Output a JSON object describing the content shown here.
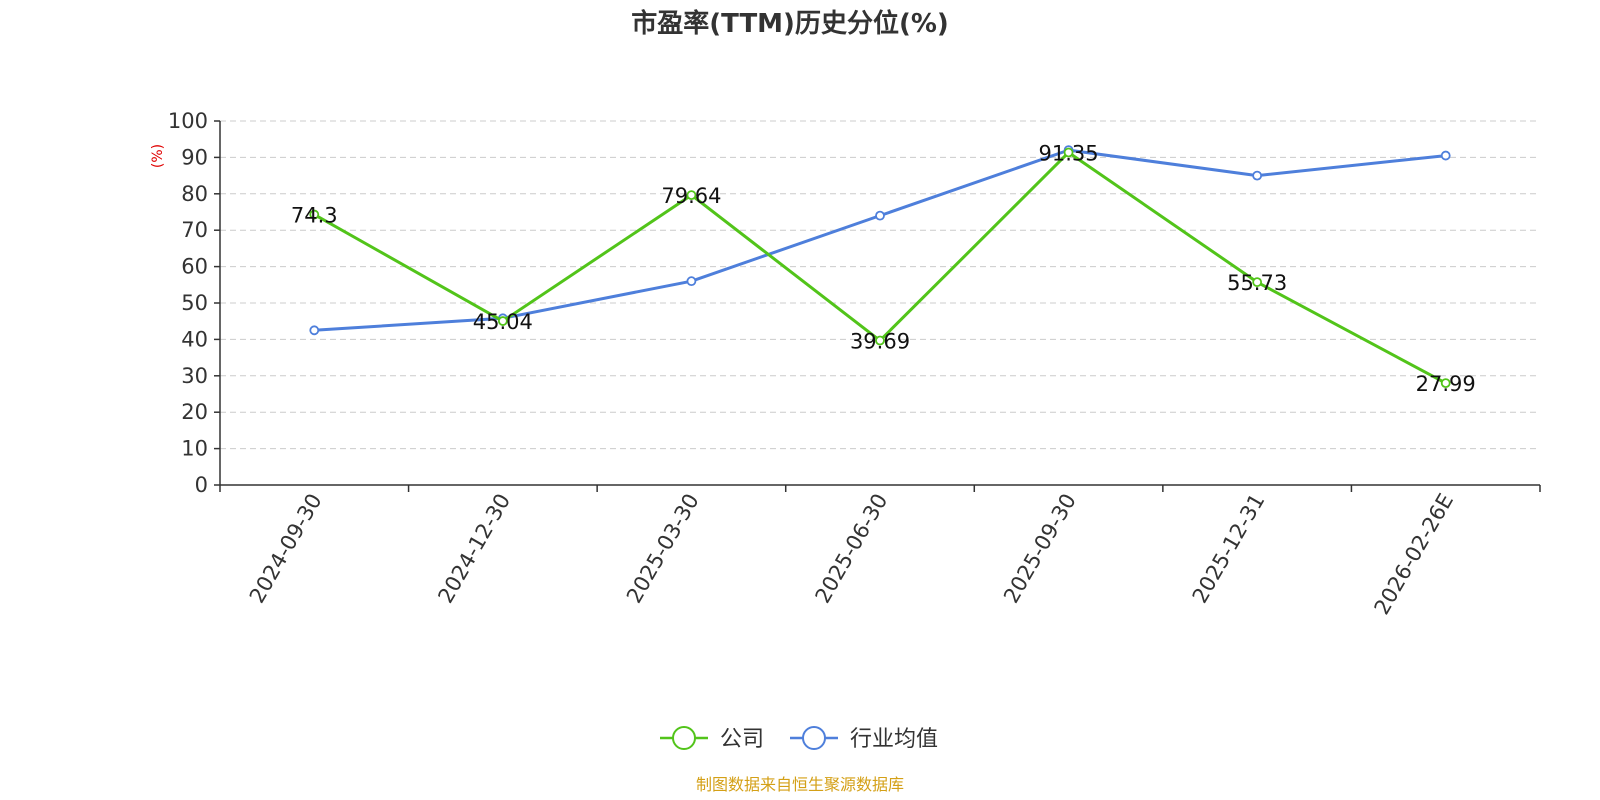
{
  "chart_data": {
    "type": "line",
    "title": "市盈率(TTM)历史分位(%)",
    "ylabel": "(%)",
    "xlabel": "",
    "ylim": [
      0,
      100
    ],
    "y_ticks": [
      "0",
      "10",
      "20",
      "30",
      "40",
      "50",
      "60",
      "70",
      "80",
      "90",
      "100"
    ],
    "grid": "horizontal dashed",
    "legend_position": "bottom-center",
    "categories": [
      "2024-09-30",
      "2024-12-30",
      "2025-03-30",
      "2025-06-30",
      "2025-09-30",
      "2025-12-31",
      "2026-02-26E"
    ],
    "series": [
      {
        "name": "公司",
        "color": "#52c41a",
        "values": [
          74.3,
          45.04,
          79.64,
          39.69,
          91.35,
          55.73,
          27.99
        ],
        "labels": [
          "74.3",
          "45.04",
          "79.64",
          "39.69",
          "91.35",
          "55.73",
          "27.99"
        ]
      },
      {
        "name": "行业均值",
        "color": "#4e7fdb",
        "values": [
          42.5,
          45.8,
          56.0,
          74.0,
          92.0,
          85.0,
          90.5
        ]
      }
    ],
    "source": "制图数据来自恒生聚源数据库"
  },
  "colors": {
    "axis": "#333333",
    "grid": "#cccccc",
    "ylabel": "#e00000",
    "source": "#d4a017"
  }
}
